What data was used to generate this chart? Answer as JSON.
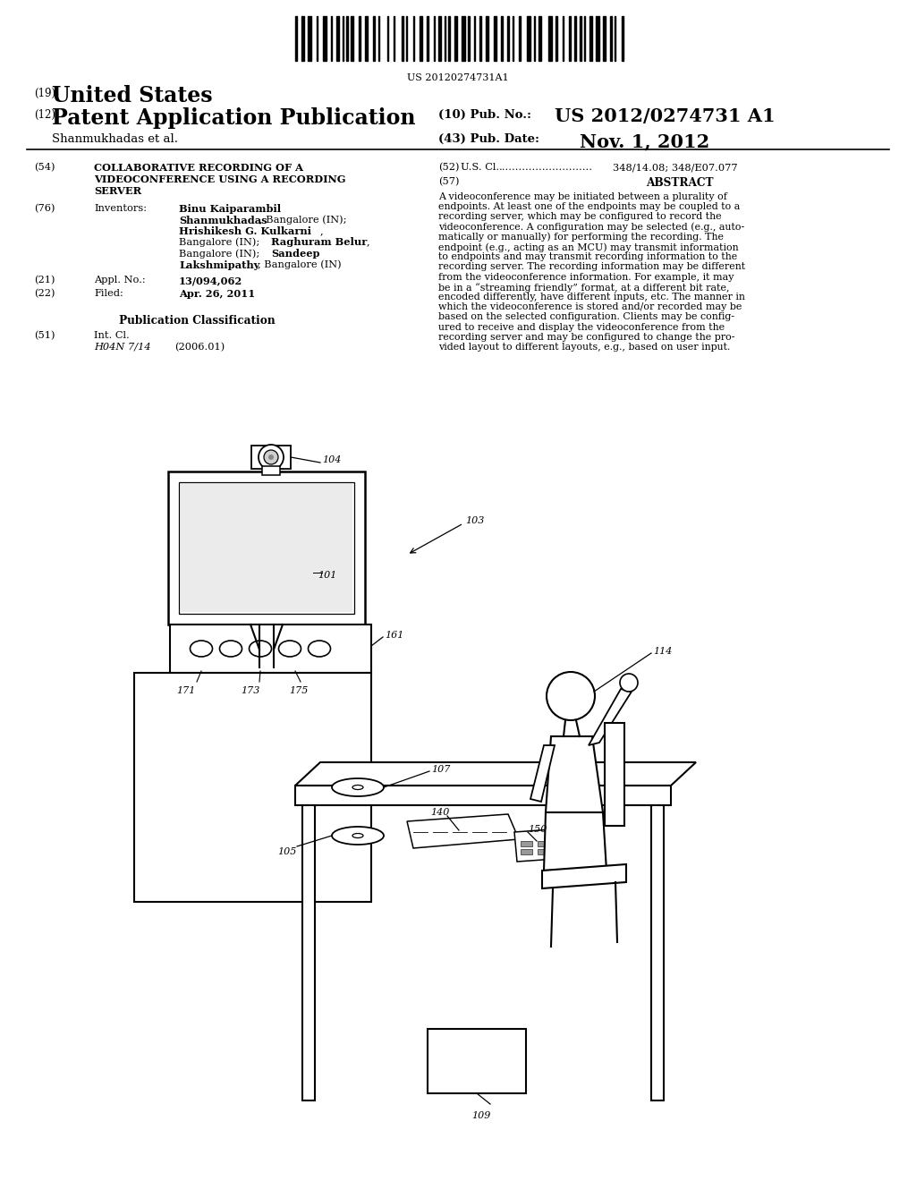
{
  "background_color": "#ffffff",
  "barcode_text": "US 20120274731A1",
  "header": {
    "country_label": "(19)",
    "country": "United States",
    "type_label": "(12)",
    "type": "Patent Application Publication",
    "pub_no_label": "(10) Pub. No.:",
    "pub_no": "US 2012/0274731 A1",
    "inventor_line": "Shanmukhadas et al.",
    "pub_date_label": "(43) Pub. Date:",
    "pub_date": "Nov. 1, 2012"
  },
  "left_col": {
    "title_label": "(54)",
    "title_line1": "COLLABORATIVE RECORDING OF A",
    "title_line2": "VIDEOCONFERENCE USING A RECORDING",
    "title_line3": "SERVER",
    "inventors_label": "(76)",
    "inventors_heading": "Inventors:",
    "appl_label": "(21)",
    "appl_heading": "Appl. No.:",
    "appl_no": "13/094,062",
    "filed_label": "(22)",
    "filed_heading": "Filed:",
    "filed_date": "Apr. 26, 2011",
    "pub_class_heading": "Publication Classification",
    "int_cl_label": "(51)",
    "int_cl_heading": "Int. Cl.",
    "int_cl_code": "H04N 7/14",
    "int_cl_year": "(2006.01)"
  },
  "right_col": {
    "us_cl_label": "(52)",
    "us_cl_heading": "U.S. Cl.",
    "us_cl_dots": "............................",
    "us_cl_value": "348/14.08; 348/E07.077",
    "abstract_label": "(57)",
    "abstract_heading": "ABSTRACT",
    "abstract_lines": [
      "A videoconference may be initiated between a plurality of",
      "endpoints. At least one of the endpoints may be coupled to a",
      "recording server, which may be configured to record the",
      "videoconference. A configuration may be selected (e.g., auto-",
      "matically or manually) for performing the recording. The",
      "endpoint (e.g., acting as an MCU) may transmit information",
      "to endpoints and may transmit recording information to the",
      "recording server. The recording information may be different",
      "from the videoconference information. For example, it may",
      "be in a “streaming friendly” format, at a different bit rate,",
      "encoded differently, have different inputs, etc. The manner in",
      "which the videoconference is stored and/or recorded may be",
      "based on the selected configuration. Clients may be config-",
      "ured to receive and display the videoconference from the",
      "recording server and may be configured to change the pro-",
      "vided layout to different layouts, e.g., based on user input."
    ]
  }
}
